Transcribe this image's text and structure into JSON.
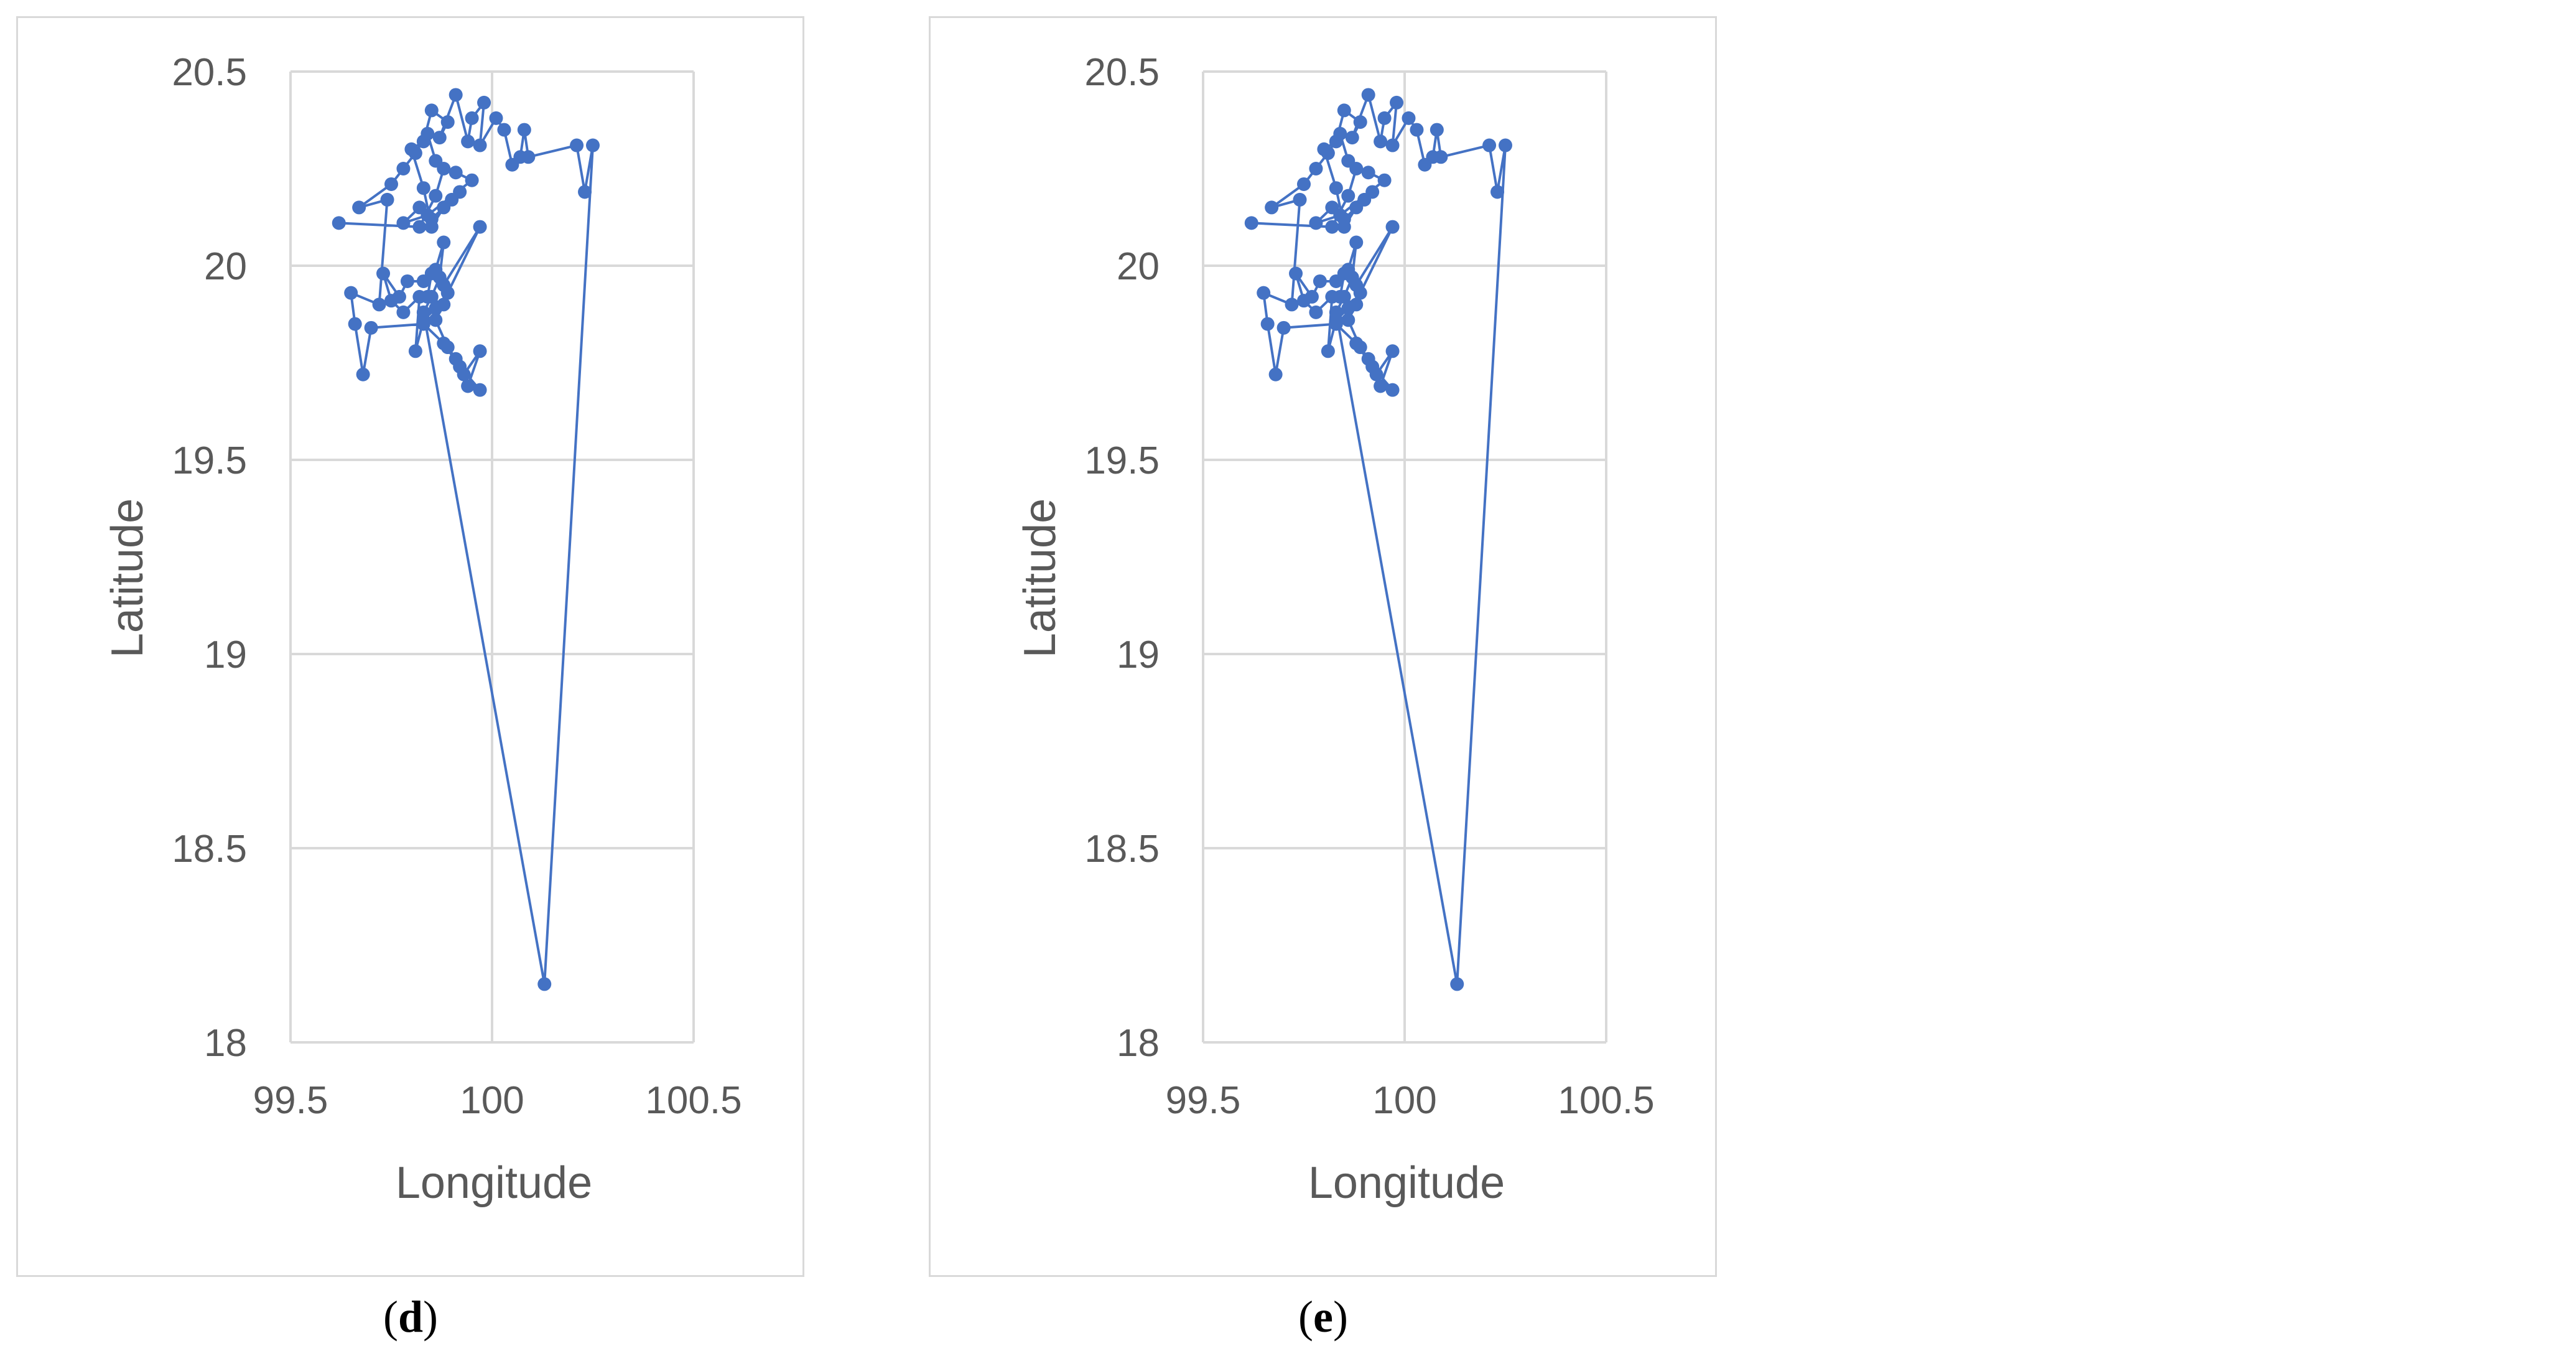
{
  "chart_data": [
    {
      "type": "scatter",
      "panel": "d",
      "xlabel": "Longitude",
      "ylabel": "Latitude",
      "xlim": [
        99.5,
        100.5
      ],
      "ylim": [
        18,
        20.5
      ],
      "xticks": [
        "99.5",
        "100",
        "100.5"
      ],
      "yticks": [
        "18",
        "18.5",
        "19",
        "19.5",
        "20",
        "20.5"
      ],
      "grid": true,
      "legend": "none",
      "color": "#4472C4",
      "points": [
        [
          99.62,
          20.11
        ],
        [
          99.82,
          20.1
        ],
        [
          99.86,
          20.18
        ],
        [
          99.88,
          20.25
        ],
        [
          99.91,
          20.24
        ],
        [
          99.95,
          20.22
        ],
        [
          99.84,
          20.13
        ],
        [
          99.78,
          20.11
        ],
        [
          99.82,
          20.15
        ],
        [
          99.85,
          20.12
        ],
        [
          99.9,
          20.17
        ],
        [
          99.92,
          20.19
        ],
        [
          99.88,
          20.15
        ],
        [
          99.85,
          20.1
        ],
        [
          99.83,
          20.2
        ],
        [
          99.8,
          20.3
        ],
        [
          99.83,
          20.32
        ],
        [
          99.85,
          20.4
        ],
        [
          99.89,
          20.37
        ],
        [
          99.87,
          20.33
        ],
        [
          99.91,
          20.44
        ],
        [
          99.94,
          20.32
        ],
        [
          99.95,
          20.38
        ],
        [
          99.98,
          20.42
        ],
        [
          99.97,
          20.31
        ],
        [
          100.01,
          20.38
        ],
        [
          100.03,
          20.35
        ],
        [
          100.05,
          20.26
        ],
        [
          100.07,
          20.28
        ],
        [
          100.08,
          20.35
        ],
        [
          100.09,
          20.28
        ],
        [
          100.21,
          20.31
        ],
        [
          100.23,
          20.19
        ],
        [
          100.25,
          20.31
        ],
        [
          100.13,
          18.15
        ],
        [
          99.83,
          19.88
        ],
        [
          99.85,
          19.92
        ],
        [
          99.87,
          19.97
        ],
        [
          99.88,
          20.06
        ],
        [
          99.86,
          19.99
        ],
        [
          99.83,
          19.96
        ],
        [
          99.79,
          19.96
        ],
        [
          99.77,
          19.92
        ],
        [
          99.73,
          19.98
        ],
        [
          99.75,
          19.91
        ],
        [
          99.78,
          19.88
        ],
        [
          99.82,
          19.92
        ],
        [
          99.81,
          19.78
        ],
        [
          99.83,
          19.86
        ],
        [
          99.86,
          19.89
        ],
        [
          99.89,
          19.93
        ],
        [
          99.97,
          20.1
        ],
        [
          99.88,
          19.95
        ],
        [
          99.85,
          19.98
        ],
        [
          99.84,
          19.92
        ],
        [
          99.88,
          19.9
        ],
        [
          99.86,
          19.86
        ],
        [
          99.89,
          19.79
        ],
        [
          99.91,
          19.76
        ],
        [
          99.93,
          19.72
        ],
        [
          99.97,
          19.78
        ],
        [
          99.94,
          19.69
        ],
        [
          99.97,
          19.68
        ],
        [
          99.92,
          19.74
        ],
        [
          99.88,
          19.8
        ],
        [
          99.83,
          19.85
        ],
        [
          99.7,
          19.84
        ],
        [
          99.68,
          19.72
        ],
        [
          99.66,
          19.85
        ],
        [
          99.65,
          19.93
        ],
        [
          99.72,
          19.9
        ],
        [
          99.74,
          20.17
        ],
        [
          99.67,
          20.15
        ],
        [
          99.75,
          20.21
        ],
        [
          99.78,
          20.25
        ],
        [
          99.81,
          20.29
        ],
        [
          99.84,
          20.34
        ],
        [
          99.86,
          20.27
        ]
      ]
    },
    {
      "type": "scatter",
      "panel": "e",
      "xlabel": "Longitude",
      "ylabel": "Latitude",
      "xlim": [
        99.5,
        100.5
      ],
      "ylim": [
        18,
        20.5
      ],
      "xticks": [
        "99.5",
        "100",
        "100.5"
      ],
      "yticks": [
        "18",
        "18.5",
        "19",
        "19.5",
        "20",
        "20.5"
      ],
      "grid": true,
      "legend": "none",
      "color": "#4472C4",
      "points": [
        [
          99.62,
          20.11
        ],
        [
          99.82,
          20.1
        ],
        [
          99.86,
          20.18
        ],
        [
          99.88,
          20.25
        ],
        [
          99.91,
          20.24
        ],
        [
          99.95,
          20.22
        ],
        [
          99.84,
          20.13
        ],
        [
          99.78,
          20.11
        ],
        [
          99.82,
          20.15
        ],
        [
          99.85,
          20.12
        ],
        [
          99.9,
          20.17
        ],
        [
          99.92,
          20.19
        ],
        [
          99.88,
          20.15
        ],
        [
          99.85,
          20.1
        ],
        [
          99.83,
          20.2
        ],
        [
          99.8,
          20.3
        ],
        [
          99.83,
          20.32
        ],
        [
          99.85,
          20.4
        ],
        [
          99.89,
          20.37
        ],
        [
          99.87,
          20.33
        ],
        [
          99.91,
          20.44
        ],
        [
          99.94,
          20.32
        ],
        [
          99.95,
          20.38
        ],
        [
          99.98,
          20.42
        ],
        [
          99.97,
          20.31
        ],
        [
          100.01,
          20.38
        ],
        [
          100.03,
          20.35
        ],
        [
          100.05,
          20.26
        ],
        [
          100.07,
          20.28
        ],
        [
          100.08,
          20.35
        ],
        [
          100.09,
          20.28
        ],
        [
          100.21,
          20.31
        ],
        [
          100.23,
          20.19
        ],
        [
          100.25,
          20.31
        ],
        [
          100.13,
          18.15
        ],
        [
          99.83,
          19.88
        ],
        [
          99.85,
          19.92
        ],
        [
          99.87,
          19.97
        ],
        [
          99.88,
          20.06
        ],
        [
          99.86,
          19.99
        ],
        [
          99.83,
          19.96
        ],
        [
          99.79,
          19.96
        ],
        [
          99.77,
          19.92
        ],
        [
          99.73,
          19.98
        ],
        [
          99.75,
          19.91
        ],
        [
          99.78,
          19.88
        ],
        [
          99.82,
          19.92
        ],
        [
          99.81,
          19.78
        ],
        [
          99.83,
          19.86
        ],
        [
          99.86,
          19.89
        ],
        [
          99.89,
          19.93
        ],
        [
          99.97,
          20.1
        ],
        [
          99.88,
          19.95
        ],
        [
          99.85,
          19.98
        ],
        [
          99.84,
          19.92
        ],
        [
          99.88,
          19.9
        ],
        [
          99.86,
          19.86
        ],
        [
          99.89,
          19.79
        ],
        [
          99.91,
          19.76
        ],
        [
          99.93,
          19.72
        ],
        [
          99.97,
          19.78
        ],
        [
          99.94,
          19.69
        ],
        [
          99.97,
          19.68
        ],
        [
          99.92,
          19.74
        ],
        [
          99.88,
          19.8
        ],
        [
          99.83,
          19.85
        ],
        [
          99.7,
          19.84
        ],
        [
          99.68,
          19.72
        ],
        [
          99.66,
          19.85
        ],
        [
          99.65,
          19.93
        ],
        [
          99.72,
          19.9
        ],
        [
          99.74,
          20.17
        ],
        [
          99.67,
          20.15
        ],
        [
          99.75,
          20.21
        ],
        [
          99.78,
          20.25
        ],
        [
          99.81,
          20.29
        ],
        [
          99.84,
          20.34
        ],
        [
          99.86,
          20.27
        ]
      ]
    }
  ],
  "captions": [
    {
      "open": "(",
      "letter": "d",
      "close": ")"
    },
    {
      "open": "(",
      "letter": "e",
      "close": ")"
    }
  ]
}
